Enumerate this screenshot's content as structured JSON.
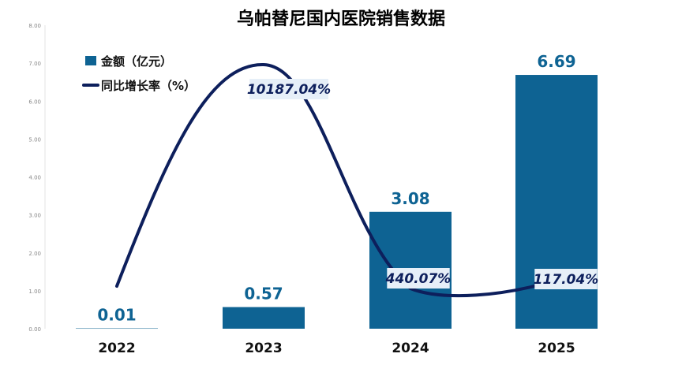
{
  "chart_data": {
    "type": "bar",
    "title": "乌帕替尼国内医院销售数据",
    "categories": [
      "2022",
      "2023",
      "2024",
      "2025"
    ],
    "series": [
      {
        "name": "金额（亿元）",
        "type": "bar",
        "values": [
          0.01,
          0.57,
          3.08,
          6.69
        ],
        "labels": [
          "0.01",
          "0.57",
          "3.08",
          "6.69"
        ]
      },
      {
        "name": "同比增长率（%）",
        "type": "line",
        "values": [
          null,
          10187.04,
          440.07,
          117.04
        ],
        "labels": [
          "",
          "10187.04%",
          "440.07%",
          "117.04%"
        ]
      }
    ],
    "y_ticks": [
      "0.00",
      "1.00",
      "2.00",
      "3.00",
      "4.00",
      "5.00",
      "6.00",
      "7.00",
      "8.00"
    ],
    "ylim": [
      0,
      8
    ],
    "grid": false,
    "legend_position": "top-left",
    "colors": {
      "bar": "#0E6393",
      "line": "#0D1F5C",
      "label_box": "#E6EFF8"
    }
  }
}
